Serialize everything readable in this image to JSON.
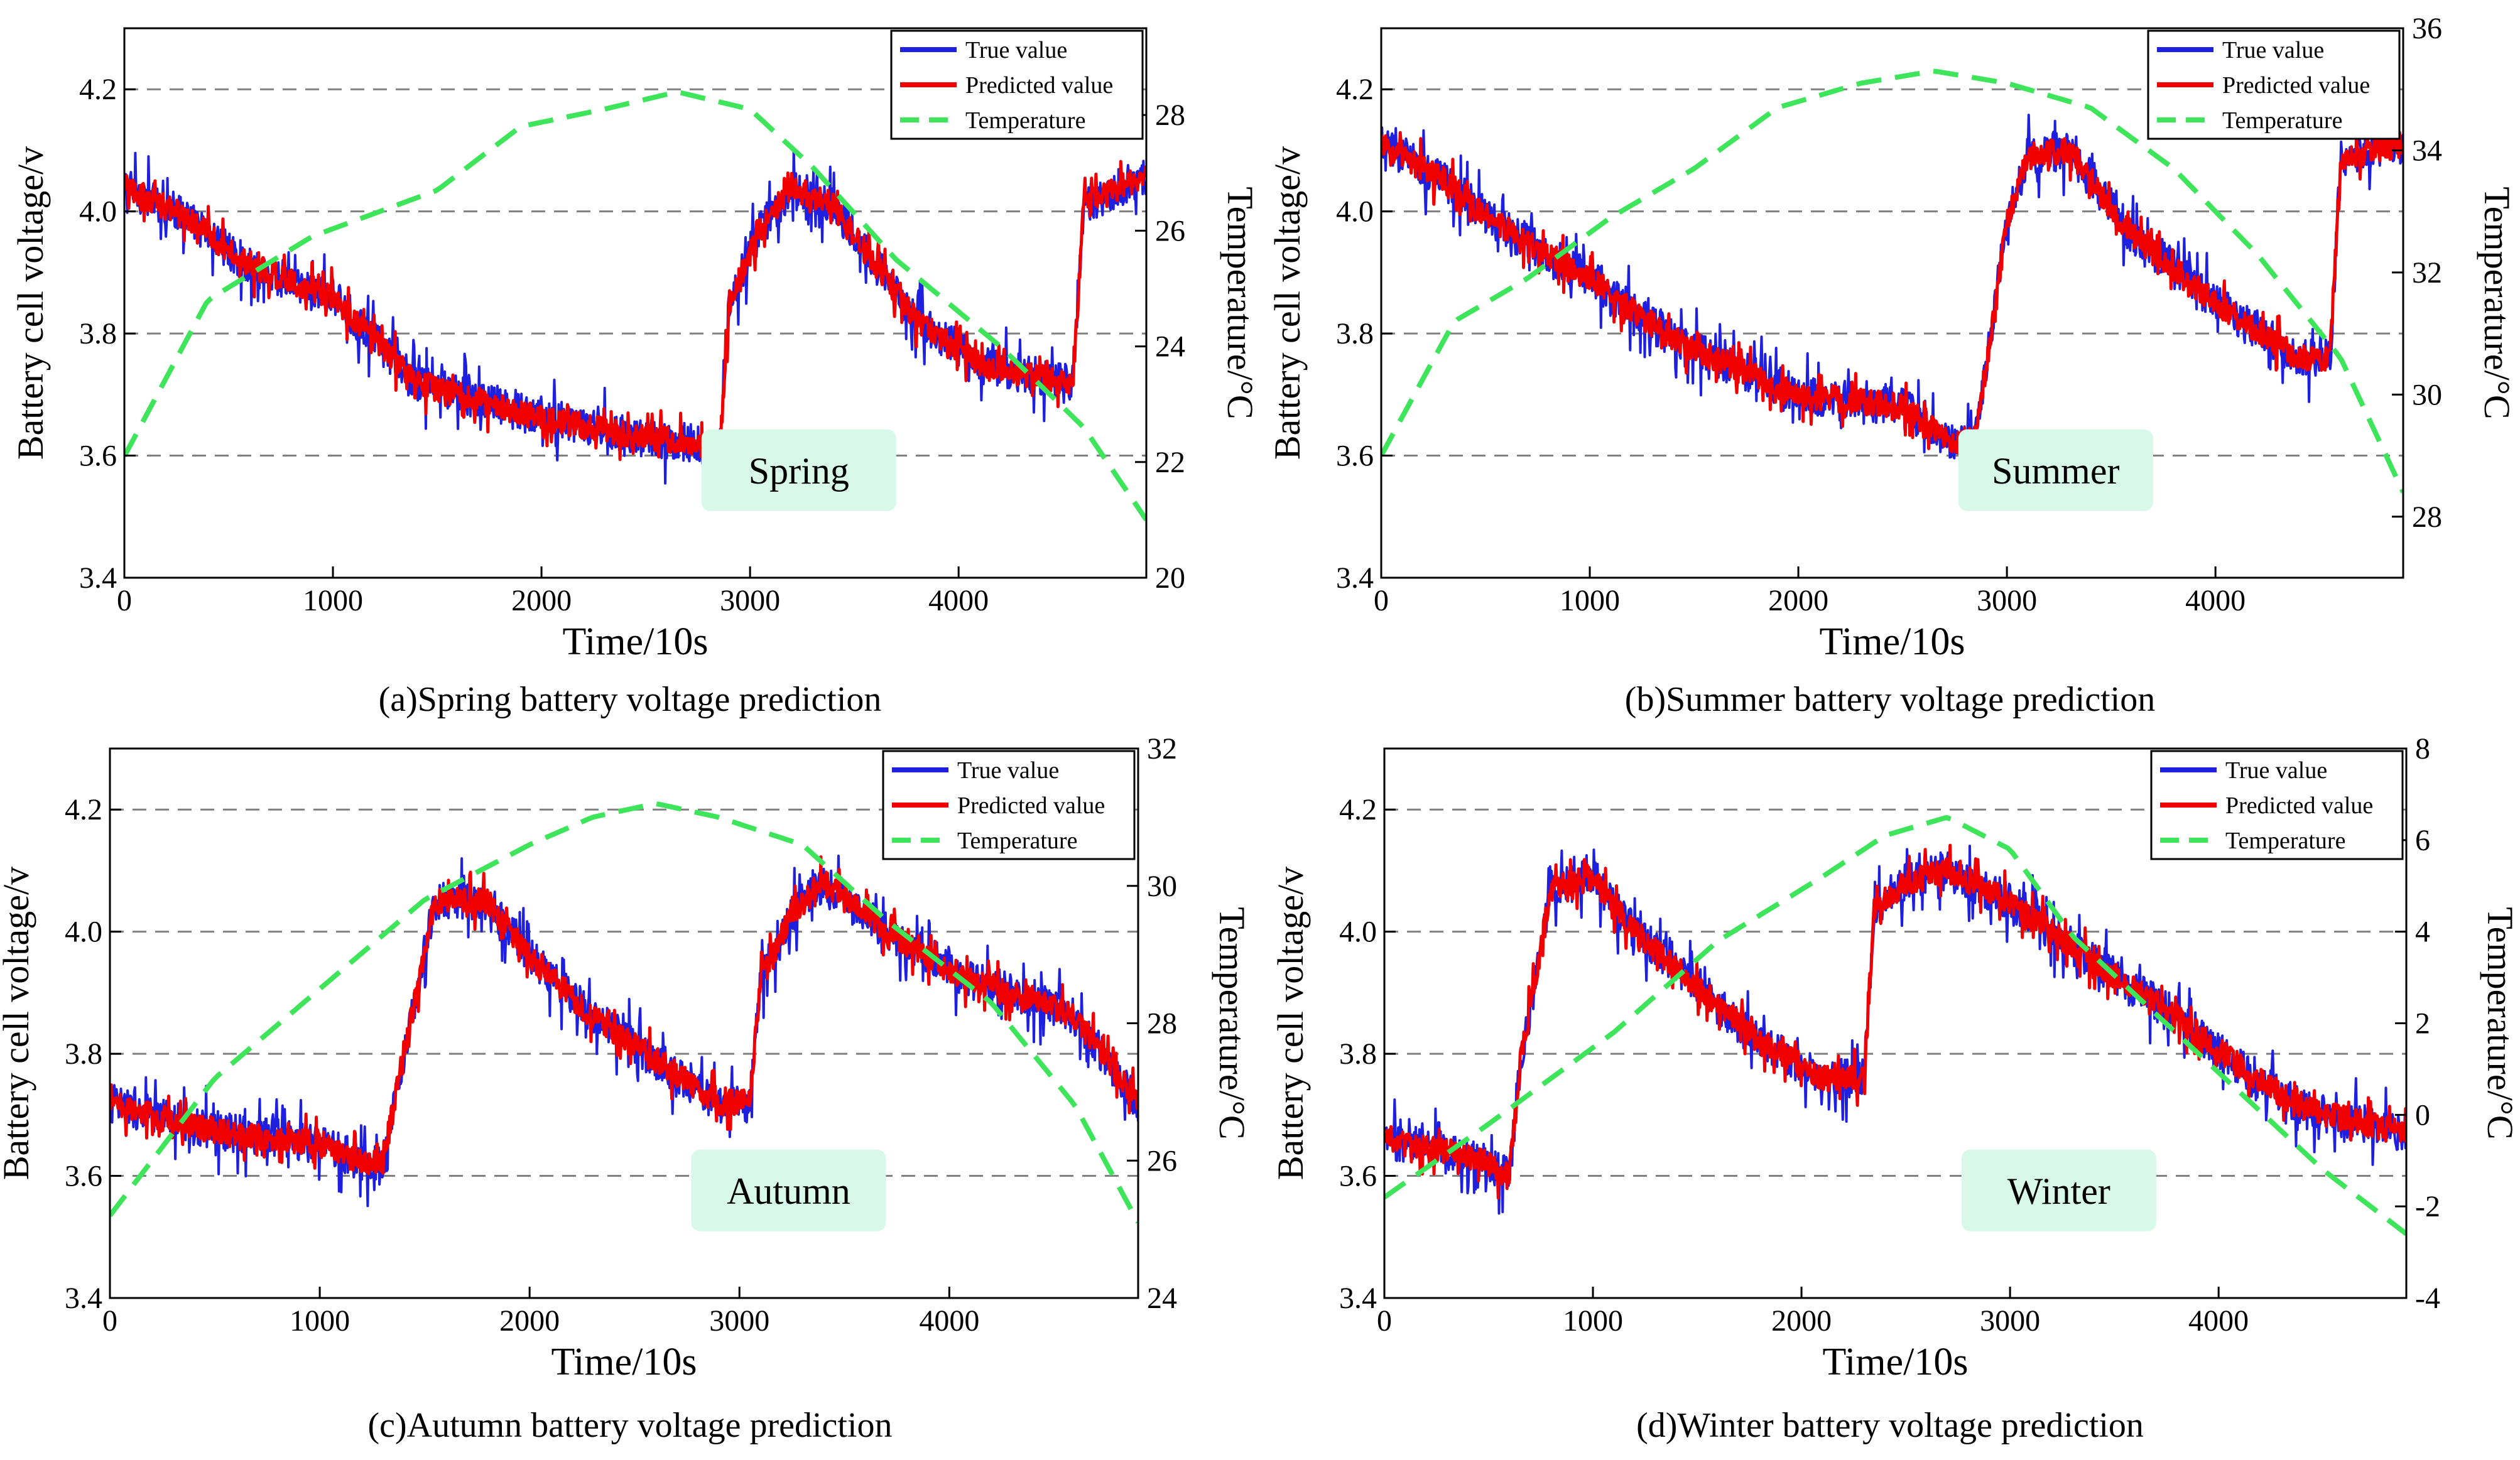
{
  "colors": {
    "true_value": "#1f1fe0",
    "predicted_value": "#f00000",
    "temperature": "#3ee45a",
    "season_badge_bg": "#d8f8ea",
    "grid": "#808080",
    "axis": "#000000"
  },
  "legend_labels": [
    "True value",
    "Predicted value",
    "Temperature"
  ],
  "chart_data": [
    {
      "type": "line",
      "panel": "a",
      "caption": "(a)Spring battery voltage prediction",
      "season": "Spring",
      "xlabel": "Time/10s",
      "ylabel": "Battery cell voltage/v",
      "y2label": "Temperature/°C",
      "xlim": [
        0,
        4900
      ],
      "ylim": [
        3.4,
        4.3
      ],
      "y2lim": [
        20,
        29.5
      ],
      "xticks": [
        0,
        1000,
        2000,
        3000,
        4000
      ],
      "yticks": [
        3.4,
        3.6,
        3.8,
        4.0,
        4.2
      ],
      "y2ticks": [
        20,
        22,
        24,
        26,
        28
      ],
      "grid_y": [
        3.6,
        3.8,
        4.0,
        4.2
      ],
      "series": [
        {
          "name": "True value",
          "axis": "left",
          "noise": 0.045,
          "points": [
            [
              0,
              4.04
            ],
            [
              300,
              3.99
            ],
            [
              600,
              3.91
            ],
            [
              1000,
              3.86
            ],
            [
              1400,
              3.72
            ],
            [
              2000,
              3.66
            ],
            [
              2500,
              3.63
            ],
            [
              2750,
              3.62
            ],
            [
              2800,
              3.59
            ],
            [
              2850,
              3.58
            ],
            [
              2900,
              3.85
            ],
            [
              3050,
              3.97
            ],
            [
              3200,
              4.04
            ],
            [
              3400,
              4.01
            ],
            [
              3800,
              3.82
            ],
            [
              4100,
              3.75
            ],
            [
              4500,
              3.72
            ],
            [
              4550,
              3.72
            ],
            [
              4600,
              4.01
            ],
            [
              4900,
              4.06
            ]
          ]
        },
        {
          "name": "Predicted value",
          "axis": "left",
          "noise": 0.03,
          "points": [
            [
              0,
              4.04
            ],
            [
              300,
              3.99
            ],
            [
              600,
              3.91
            ],
            [
              1000,
              3.86
            ],
            [
              1400,
              3.72
            ],
            [
              2000,
              3.66
            ],
            [
              2500,
              3.63
            ],
            [
              2750,
              3.62
            ],
            [
              2800,
              3.59
            ],
            [
              2850,
              3.58
            ],
            [
              2900,
              3.85
            ],
            [
              3050,
              3.97
            ],
            [
              3200,
              4.04
            ],
            [
              3400,
              4.01
            ],
            [
              3800,
              3.82
            ],
            [
              4100,
              3.75
            ],
            [
              4500,
              3.72
            ],
            [
              4550,
              3.72
            ],
            [
              4600,
              4.01
            ],
            [
              4900,
              4.06
            ]
          ]
        },
        {
          "name": "Temperature",
          "axis": "right",
          "noise": 0,
          "points": [
            [
              0,
              22.1
            ],
            [
              400,
              24.8
            ],
            [
              900,
              25.9
            ],
            [
              1500,
              26.7
            ],
            [
              1900,
              27.8
            ],
            [
              2300,
              28.1
            ],
            [
              2650,
              28.4
            ],
            [
              3000,
              28.1
            ],
            [
              3300,
              27.1
            ],
            [
              3700,
              25.5
            ],
            [
              4200,
              24.0
            ],
            [
              4600,
              22.6
            ],
            [
              4900,
              21.0
            ]
          ]
        }
      ]
    },
    {
      "type": "line",
      "panel": "b",
      "caption": "(b)Summer battery voltage prediction",
      "season": "Summer",
      "xlabel": "Time/10s",
      "ylabel": "Battery cell voltage/v",
      "y2label": "Temperature/°C",
      "xlim": [
        0,
        4900
      ],
      "ylim": [
        3.4,
        4.3
      ],
      "y2lim": [
        27,
        36
      ],
      "xticks": [
        0,
        1000,
        2000,
        3000,
        4000
      ],
      "yticks": [
        3.4,
        3.6,
        3.8,
        4.0,
        4.2
      ],
      "y2ticks": [
        28,
        30,
        32,
        34,
        36
      ],
      "grid_y": [
        3.6,
        3.8,
        4.0,
        4.2
      ],
      "series": [
        {
          "name": "True value",
          "axis": "left",
          "noise": 0.045,
          "points": [
            [
              0,
              4.11
            ],
            [
              300,
              4.05
            ],
            [
              600,
              3.97
            ],
            [
              1000,
              3.89
            ],
            [
              1400,
              3.79
            ],
            [
              2000,
              3.7
            ],
            [
              2500,
              3.68
            ],
            [
              2750,
              3.62
            ],
            [
              2850,
              3.63
            ],
            [
              3000,
              3.98
            ],
            [
              3100,
              4.09
            ],
            [
              3300,
              4.1
            ],
            [
              3600,
              3.96
            ],
            [
              4000,
              3.85
            ],
            [
              4400,
              3.76
            ],
            [
              4550,
              3.76
            ],
            [
              4600,
              4.09
            ],
            [
              4900,
              4.11
            ]
          ]
        },
        {
          "name": "Predicted value",
          "axis": "left",
          "noise": 0.03,
          "points": [
            [
              0,
              4.11
            ],
            [
              300,
              4.05
            ],
            [
              600,
              3.97
            ],
            [
              1000,
              3.89
            ],
            [
              1400,
              3.79
            ],
            [
              2000,
              3.7
            ],
            [
              2500,
              3.68
            ],
            [
              2750,
              3.62
            ],
            [
              2850,
              3.63
            ],
            [
              3000,
              3.98
            ],
            [
              3100,
              4.09
            ],
            [
              3300,
              4.1
            ],
            [
              3600,
              3.96
            ],
            [
              4000,
              3.85
            ],
            [
              4400,
              3.76
            ],
            [
              4550,
              3.76
            ],
            [
              4600,
              4.09
            ],
            [
              4900,
              4.11
            ]
          ]
        },
        {
          "name": "Temperature",
          "axis": "right",
          "noise": 0,
          "points": [
            [
              0,
              29.0
            ],
            [
              350,
              31.2
            ],
            [
              700,
              31.9
            ],
            [
              1100,
              32.9
            ],
            [
              1500,
              33.7
            ],
            [
              1900,
              34.7
            ],
            [
              2300,
              35.1
            ],
            [
              2650,
              35.3
            ],
            [
              3000,
              35.1
            ],
            [
              3400,
              34.7
            ],
            [
              3800,
              33.7
            ],
            [
              4200,
              32.3
            ],
            [
              4600,
              30.6
            ],
            [
              4900,
              28.4
            ]
          ]
        }
      ]
    },
    {
      "type": "line",
      "panel": "c",
      "caption": "(c)Autumn battery voltage prediction",
      "season": "Autumn",
      "xlabel": "Time/10s",
      "ylabel": "Battery cell voltage/v",
      "y2label": "Temperature/°C",
      "xlim": [
        0,
        4900
      ],
      "ylim": [
        3.4,
        4.3
      ],
      "y2lim": [
        24,
        32
      ],
      "xticks": [
        0,
        1000,
        2000,
        3000,
        4000
      ],
      "yticks": [
        3.4,
        3.6,
        3.8,
        4.0,
        4.2
      ],
      "y2ticks": [
        24,
        26,
        28,
        30,
        32
      ],
      "grid_y": [
        3.6,
        3.8,
        4.0,
        4.2
      ],
      "series": [
        {
          "name": "True value",
          "axis": "left",
          "noise": 0.045,
          "points": [
            [
              0,
              3.72
            ],
            [
              400,
              3.68
            ],
            [
              800,
              3.66
            ],
            [
              1050,
              3.65
            ],
            [
              1200,
              3.62
            ],
            [
              1300,
              3.62
            ],
            [
              1400,
              3.8
            ],
            [
              1550,
              4.05
            ],
            [
              1800,
              4.05
            ],
            [
              2000,
              3.96
            ],
            [
              2300,
              3.86
            ],
            [
              2600,
              3.79
            ],
            [
              2900,
              3.72
            ],
            [
              3050,
              3.72
            ],
            [
              3100,
              3.92
            ],
            [
              3250,
              4.03
            ],
            [
              3400,
              4.08
            ],
            [
              3700,
              4.0
            ],
            [
              4100,
              3.92
            ],
            [
              4400,
              3.89
            ],
            [
              4600,
              3.86
            ],
            [
              4900,
              3.72
            ]
          ]
        },
        {
          "name": "Predicted value",
          "axis": "left",
          "noise": 0.03,
          "points": [
            [
              0,
              3.72
            ],
            [
              400,
              3.68
            ],
            [
              800,
              3.66
            ],
            [
              1050,
              3.65
            ],
            [
              1200,
              3.62
            ],
            [
              1300,
              3.62
            ],
            [
              1400,
              3.8
            ],
            [
              1550,
              4.05
            ],
            [
              1800,
              4.05
            ],
            [
              2000,
              3.96
            ],
            [
              2300,
              3.86
            ],
            [
              2600,
              3.79
            ],
            [
              2900,
              3.72
            ],
            [
              3050,
              3.72
            ],
            [
              3100,
              3.92
            ],
            [
              3250,
              4.03
            ],
            [
              3400,
              4.08
            ],
            [
              3700,
              4.0
            ],
            [
              4100,
              3.92
            ],
            [
              4400,
              3.89
            ],
            [
              4600,
              3.86
            ],
            [
              4900,
              3.72
            ]
          ]
        },
        {
          "name": "Temperature",
          "axis": "right",
          "noise": 0,
          "points": [
            [
              0,
              25.2
            ],
            [
              500,
              27.2
            ],
            [
              1000,
              28.5
            ],
            [
              1500,
              29.8
            ],
            [
              2000,
              30.6
            ],
            [
              2300,
              31.0
            ],
            [
              2600,
              31.2
            ],
            [
              2900,
              31.0
            ],
            [
              3300,
              30.6
            ],
            [
              3700,
              29.5
            ],
            [
              4200,
              28.3
            ],
            [
              4600,
              26.8
            ],
            [
              4900,
              25.1
            ]
          ]
        }
      ]
    },
    {
      "type": "line",
      "panel": "d",
      "caption": "(d)Winter battery voltage prediction",
      "season": "Winter",
      "xlabel": "Time/10s",
      "ylabel": "Battery cell voltage/v",
      "y2label": "Temperature/°C",
      "xlim": [
        0,
        4900
      ],
      "ylim": [
        3.4,
        4.3
      ],
      "y2lim": [
        -4,
        8
      ],
      "xticks": [
        0,
        1000,
        2000,
        3000,
        4000
      ],
      "yticks": [
        3.4,
        3.6,
        3.8,
        4.0,
        4.2
      ],
      "y2ticks": [
        -4,
        -2,
        0,
        2,
        4,
        6,
        8
      ],
      "grid_y": [
        3.6,
        3.8,
        4.0,
        4.2
      ],
      "series": [
        {
          "name": "True value",
          "axis": "left",
          "noise": 0.045,
          "points": [
            [
              0,
              3.66
            ],
            [
              300,
              3.64
            ],
            [
              500,
              3.62
            ],
            [
              600,
              3.6
            ],
            [
              650,
              3.78
            ],
            [
              800,
              4.07
            ],
            [
              1000,
              4.09
            ],
            [
              1200,
              4.0
            ],
            [
              1500,
              3.91
            ],
            [
              1800,
              3.82
            ],
            [
              2100,
              3.76
            ],
            [
              2300,
              3.76
            ],
            [
              2350,
              4.04
            ],
            [
              2500,
              4.08
            ],
            [
              2700,
              4.1
            ],
            [
              3000,
              4.05
            ],
            [
              3400,
              3.95
            ],
            [
              3800,
              3.86
            ],
            [
              4100,
              3.78
            ],
            [
              4400,
              3.71
            ],
            [
              4900,
              3.67
            ]
          ]
        },
        {
          "name": "Predicted value",
          "axis": "left",
          "noise": 0.03,
          "points": [
            [
              0,
              3.66
            ],
            [
              300,
              3.64
            ],
            [
              500,
              3.62
            ],
            [
              600,
              3.6
            ],
            [
              650,
              3.78
            ],
            [
              800,
              4.07
            ],
            [
              1000,
              4.09
            ],
            [
              1200,
              4.0
            ],
            [
              1500,
              3.91
            ],
            [
              1800,
              3.82
            ],
            [
              2100,
              3.76
            ],
            [
              2300,
              3.76
            ],
            [
              2350,
              4.04
            ],
            [
              2500,
              4.08
            ],
            [
              2700,
              4.1
            ],
            [
              3000,
              4.05
            ],
            [
              3400,
              3.95
            ],
            [
              3800,
              3.86
            ],
            [
              4100,
              3.78
            ],
            [
              4400,
              3.71
            ],
            [
              4900,
              3.67
            ]
          ]
        },
        {
          "name": "Temperature",
          "axis": "right",
          "noise": 0,
          "points": [
            [
              0,
              -1.8
            ],
            [
              500,
              -0.2
            ],
            [
              1100,
              1.8
            ],
            [
              1600,
              3.8
            ],
            [
              2100,
              5.2
            ],
            [
              2400,
              6.1
            ],
            [
              2700,
              6.5
            ],
            [
              3000,
              5.8
            ],
            [
              3300,
              3.9
            ],
            [
              3700,
              2.2
            ],
            [
              4100,
              0.5
            ],
            [
              4500,
              -1.2
            ],
            [
              4900,
              -2.6
            ]
          ]
        }
      ]
    }
  ]
}
